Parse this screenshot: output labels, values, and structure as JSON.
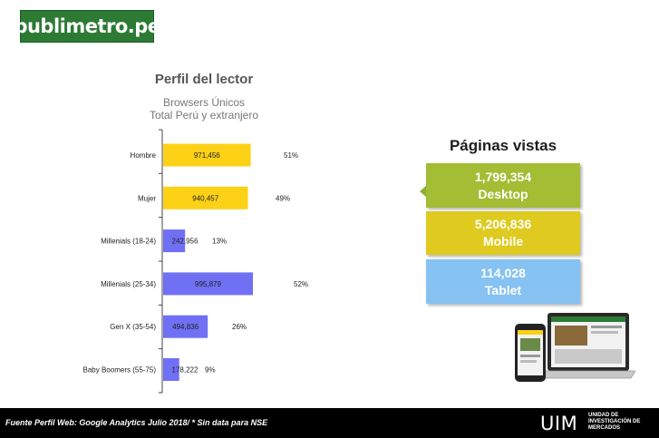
{
  "brand": {
    "logo_text": "publimetro.pe"
  },
  "chart_data": {
    "type": "bar",
    "orientation": "horizontal",
    "title": "Perfil del lector",
    "subtitle": [
      "Browsers Únicos",
      "Total Perú y extranjero"
    ],
    "categories": [
      "Hombre",
      "Mujer",
      "Millenials (18-24)",
      "Millenials (25-34)",
      "Gen X (35-54)",
      "Baby Boomers (55-75)"
    ],
    "values": [
      971456,
      940457,
      242956,
      995879,
      494836,
      178222
    ],
    "value_labels": [
      "971,456",
      "940,457",
      "242,956",
      "995,879",
      "494,836",
      "178,222"
    ],
    "percent_labels": [
      "51%",
      "49%",
      "13%",
      "52%",
      "26%",
      "9%"
    ],
    "bar_colors": [
      "#fcd116",
      "#fcd116",
      "#7070f5",
      "#7070f5",
      "#7070f5",
      "#7070f5"
    ],
    "xlim": [
      0,
      1000000
    ],
    "grid": false,
    "legend": "none"
  },
  "page_views": {
    "title": "Páginas vistas",
    "items": [
      {
        "value": "1,799,354",
        "label": "Desktop",
        "color": "#a3bd34"
      },
      {
        "value": "5,206,836",
        "label": "Mobile",
        "color": "#dfca1f"
      },
      {
        "value": "114,028",
        "label": "Tablet",
        "color": "#86c2f2"
      }
    ]
  },
  "footer": {
    "source": "Fuente Perfil Web: Google Analytics Julio 2018/  * Sin data para NSE",
    "brand": "UIM",
    "brand_sub": "UNIDAD DE INVESTIGACIÓN DE MERCADOS"
  }
}
